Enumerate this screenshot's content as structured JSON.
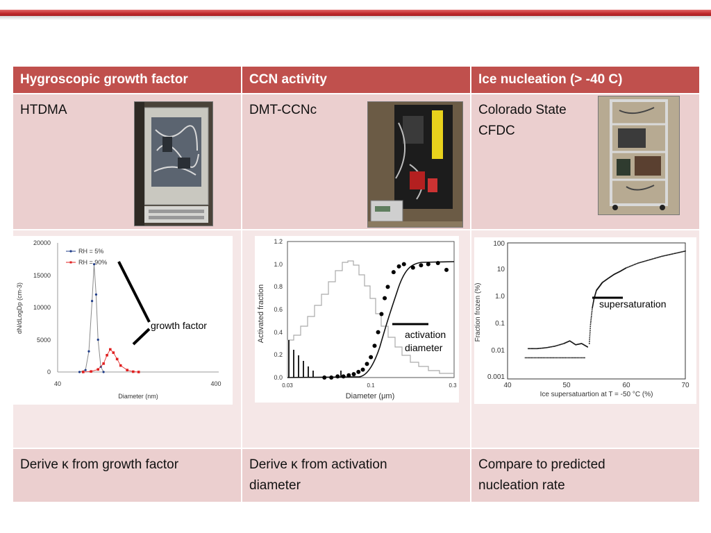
{
  "header": {
    "col1": "Hygroscopic growth factor",
    "col2": "CCN activity",
    "col3": "Ice nucleation (> -40 C)"
  },
  "instruments": {
    "col1": "HTDMA",
    "col2": "DMT-CCNc",
    "col3_line1": "Colorado State",
    "col3_line2": "CFDC"
  },
  "conclusions": {
    "col1": "Derive κ from growth factor",
    "col2_line1": "Derive κ from activation",
    "col2_line2": "diameter",
    "col3_line1": "Compare to predicted",
    "col3_line2": "nucleation rate"
  },
  "colors": {
    "header": "#c0504d",
    "row_dark": "#ebcfcf",
    "row_light": "#f5e7e7",
    "accent_red": "#e02020"
  },
  "chart_data": [
    {
      "type": "line",
      "series": [
        {
          "name": "RH = 5%",
          "x": [
            55,
            60,
            63,
            66,
            68,
            70,
            72,
            75,
            78
          ],
          "values": [
            0,
            300,
            3200,
            11000,
            16700,
            12000,
            5000,
            800,
            0
          ]
        },
        {
          "name": "RH = 90%",
          "x": [
            58,
            65,
            72,
            78,
            82,
            86,
            90,
            95,
            100,
            110,
            120,
            130
          ],
          "values": [
            0,
            80,
            400,
            1300,
            2600,
            3500,
            3000,
            2000,
            1000,
            300,
            50,
            0
          ]
        }
      ],
      "xlabel": "Diameter (nm)",
      "ylabel": "dN/dLogDp (cm-3)",
      "xlim": [
        40,
        400
      ],
      "ylim": [
        0,
        20000
      ],
      "yticks": [
        "0",
        "5000",
        "10000",
        "15000",
        "20000"
      ],
      "xticks": [
        "40",
        "400"
      ],
      "annotation": "growth factor",
      "grid": false,
      "legend": "top-left"
    },
    {
      "type": "scatter",
      "series": [
        {
          "x": [
            0.05,
            0.055,
            0.06,
            0.065,
            0.07,
            0.075,
            0.08,
            0.085,
            0.09,
            0.095,
            0.1,
            0.105,
            0.11,
            0.115,
            0.12,
            0.13,
            0.14,
            0.15,
            0.17,
            0.19,
            0.21,
            0.24,
            0.27
          ],
          "values": [
            0.0,
            0.0,
            0.01,
            0.01,
            0.02,
            0.03,
            0.05,
            0.07,
            0.12,
            0.18,
            0.28,
            0.4,
            0.56,
            0.7,
            0.8,
            0.93,
            0.98,
            1.0,
            0.97,
            0.99,
            1.0,
            1.01,
            0.95
          ]
        }
      ],
      "xlabel": "Diameter (μm)",
      "ylabel": "Activated fraction",
      "xticks": [
        "0.03",
        "0.1",
        "0.3"
      ],
      "yticks": [
        "0.0",
        "0.2",
        "0.4",
        "0.6",
        "0.8",
        "1.0",
        "1.2"
      ],
      "xlim": [
        0.03,
        0.3
      ],
      "ylim": [
        0,
        1.2
      ],
      "annotation_line1": "activation",
      "annotation_line2": "diameter",
      "grid": false
    },
    {
      "type": "scatter",
      "series": [
        {
          "x": [
            43,
            45,
            47,
            49,
            51,
            53
          ],
          "values": [
            0.006,
            0.006,
            0.006,
            0.006,
            0.006,
            0.006
          ]
        },
        {
          "x": [
            43.5,
            45,
            46.5,
            48,
            49.5,
            50.5,
            51.5,
            52.5,
            53.5
          ],
          "values": [
            0.013,
            0.013,
            0.014,
            0.016,
            0.02,
            0.025,
            0.018,
            0.02,
            0.015
          ]
        },
        {
          "x": [
            53.8,
            54,
            54.3,
            54.6,
            55,
            55.5,
            56,
            57,
            58,
            59,
            60,
            62,
            64,
            66,
            68,
            70
          ],
          "values": [
            0.02,
            0.1,
            0.4,
            0.9,
            1.8,
            2.5,
            3.5,
            5,
            7,
            9,
            12,
            18,
            24,
            32,
            40,
            50
          ]
        }
      ],
      "xlabel": "Ice supersatuartion at T = -50 °C (%)",
      "ylabel": "Fraction frozen (%)",
      "xticks": [
        "40",
        "50",
        "60",
        "70"
      ],
      "yticks": [
        "0.001",
        "0.01",
        "0.1",
        "1.0",
        "10",
        "100"
      ],
      "xlim": [
        40,
        70
      ],
      "ylim": [
        0.001,
        100
      ],
      "yscale": "log",
      "annotation": "supersaturation",
      "grid": false
    }
  ]
}
